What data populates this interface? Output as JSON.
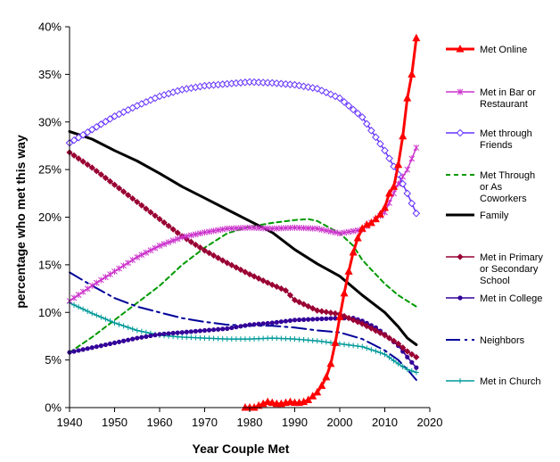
{
  "chart_data": {
    "type": "line",
    "xlabel": "Year Couple Met",
    "ylabel": "percentage who met this way",
    "xlim": [
      1940,
      2020
    ],
    "ylim": [
      0,
      40
    ],
    "xticks": [
      1940,
      1950,
      1960,
      1970,
      1980,
      1990,
      2000,
      2010,
      2020
    ],
    "yticks": [
      0,
      5,
      10,
      15,
      20,
      25,
      30,
      35,
      40
    ],
    "xtick_labels": [
      "1940",
      "1950",
      "1960",
      "1970",
      "1980",
      "1990",
      "2000",
      "2010",
      "2020"
    ],
    "ytick_labels": [
      "0%",
      "5%",
      "10%",
      "15%",
      "20%",
      "25%",
      "30%",
      "35%",
      "40%"
    ],
    "grid": false,
    "legend_position": "right",
    "series": [
      {
        "name": "Met Online",
        "color": "#ff0000",
        "dash": "solid",
        "marker": "triangle",
        "width": 3,
        "points": [
          [
            1979,
            0
          ],
          [
            1980,
            0
          ],
          [
            1981,
            0
          ],
          [
            1982,
            0.2
          ],
          [
            1983,
            0.4
          ],
          [
            1984,
            0.6
          ],
          [
            1985,
            0.5
          ],
          [
            1986,
            0.4
          ],
          [
            1987,
            0.4
          ],
          [
            1988,
            0.5
          ],
          [
            1989,
            0.6
          ],
          [
            1990,
            0.5
          ],
          [
            1991,
            0.5
          ],
          [
            1992,
            0.6
          ],
          [
            1993,
            0.8
          ],
          [
            1994,
            1.2
          ],
          [
            1995,
            1.6
          ],
          [
            1996,
            2.3
          ],
          [
            1997,
            3.2
          ],
          [
            1998,
            4.6
          ],
          [
            1999,
            6.8
          ],
          [
            2000,
            9.5
          ],
          [
            2001,
            12
          ],
          [
            2002,
            14.3
          ],
          [
            2003,
            16.3
          ],
          [
            2004,
            17.8
          ],
          [
            2005,
            18.8
          ],
          [
            2006,
            19.2
          ],
          [
            2007,
            19.4
          ],
          [
            2008,
            19.8
          ],
          [
            2009,
            20.3
          ],
          [
            2010,
            21
          ],
          [
            2011,
            22.5
          ],
          [
            2012,
            23.2
          ],
          [
            2013,
            25.5
          ],
          [
            2014,
            28.5
          ],
          [
            2015,
            32.5
          ],
          [
            2016,
            35
          ],
          [
            2017,
            38.8
          ]
        ]
      },
      {
        "name": "Met in Bar or Restaurant",
        "color": "#cc33cc",
        "dash": "solid",
        "marker": "star",
        "width": 1.5,
        "points": [
          [
            1940,
            11.2
          ],
          [
            1945,
            12.8
          ],
          [
            1950,
            14.3
          ],
          [
            1955,
            15.8
          ],
          [
            1960,
            17
          ],
          [
            1965,
            17.9
          ],
          [
            1970,
            18.4
          ],
          [
            1975,
            18.8
          ],
          [
            1980,
            18.9
          ],
          [
            1985,
            18.8
          ],
          [
            1990,
            18.9
          ],
          [
            1995,
            18.8
          ],
          [
            2000,
            18.3
          ],
          [
            2005,
            18.7
          ],
          [
            2010,
            20.5
          ],
          [
            2013,
            23.5
          ],
          [
            2015,
            25
          ],
          [
            2017,
            27.3
          ]
        ]
      },
      {
        "name": "Met through Friends",
        "color": "#6633ff",
        "dash": "solid",
        "marker": "diamond-open",
        "width": 1.5,
        "points": [
          [
            1940,
            27.8
          ],
          [
            1945,
            29.2
          ],
          [
            1950,
            30.6
          ],
          [
            1955,
            31.7
          ],
          [
            1960,
            32.7
          ],
          [
            1965,
            33.4
          ],
          [
            1970,
            33.8
          ],
          [
            1975,
            34
          ],
          [
            1980,
            34.2
          ],
          [
            1985,
            34.1
          ],
          [
            1990,
            33.9
          ],
          [
            1995,
            33.5
          ],
          [
            2000,
            32.5
          ],
          [
            2005,
            30.5
          ],
          [
            2010,
            27
          ],
          [
            2013,
            24.5
          ],
          [
            2015,
            22.5
          ],
          [
            2017,
            20.4
          ]
        ]
      },
      {
        "name": "Met Through or As Coworkers",
        "color": "#009900",
        "dash": "5,4",
        "marker": "none",
        "width": 2,
        "points": [
          [
            1940,
            5.8
          ],
          [
            1945,
            7.4
          ],
          [
            1950,
            9.2
          ],
          [
            1955,
            11
          ],
          [
            1960,
            12.8
          ],
          [
            1965,
            15
          ],
          [
            1970,
            16.8
          ],
          [
            1975,
            18.3
          ],
          [
            1980,
            19
          ],
          [
            1985,
            19.4
          ],
          [
            1990,
            19.7
          ],
          [
            1993,
            19.8
          ],
          [
            1995,
            19.6
          ],
          [
            2000,
            18.3
          ],
          [
            2003,
            17
          ],
          [
            2005,
            15.5
          ],
          [
            2008,
            14
          ],
          [
            2010,
            13
          ],
          [
            2013,
            11.8
          ],
          [
            2017,
            10.6
          ]
        ]
      },
      {
        "name": "Family",
        "color": "#000000",
        "dash": "solid",
        "marker": "none",
        "width": 3,
        "points": [
          [
            1940,
            29
          ],
          [
            1945,
            28.2
          ],
          [
            1950,
            27
          ],
          [
            1955,
            25.9
          ],
          [
            1960,
            24.6
          ],
          [
            1965,
            23.2
          ],
          [
            1970,
            22
          ],
          [
            1975,
            20.8
          ],
          [
            1980,
            19.6
          ],
          [
            1985,
            18.4
          ],
          [
            1990,
            16.6
          ],
          [
            1995,
            15.1
          ],
          [
            2000,
            13.8
          ],
          [
            2005,
            11.8
          ],
          [
            2010,
            10
          ],
          [
            2013,
            8.5
          ],
          [
            2015,
            7.3
          ],
          [
            2017,
            6.6
          ]
        ]
      },
      {
        "name": "Met in Primary or Secondary School",
        "color": "#990033",
        "dash": "solid",
        "marker": "diamond",
        "width": 1.5,
        "points": [
          [
            1940,
            26.8
          ],
          [
            1945,
            25.2
          ],
          [
            1950,
            23.4
          ],
          [
            1955,
            21.6
          ],
          [
            1960,
            19.8
          ],
          [
            1965,
            18
          ],
          [
            1970,
            16.5
          ],
          [
            1975,
            15.2
          ],
          [
            1980,
            14
          ],
          [
            1985,
            12.9
          ],
          [
            1988,
            12.3
          ],
          [
            1990,
            11.3
          ],
          [
            1995,
            10.2
          ],
          [
            2000,
            9.8
          ],
          [
            2005,
            8.8
          ],
          [
            2010,
            7.6
          ],
          [
            2013,
            6.7
          ],
          [
            2015,
            5.9
          ],
          [
            2017,
            5.3
          ]
        ]
      },
      {
        "name": "Met in College",
        "color": "#330099",
        "dash": "solid",
        "marker": "circle",
        "width": 1.5,
        "points": [
          [
            1940,
            5.8
          ],
          [
            1945,
            6.3
          ],
          [
            1950,
            6.8
          ],
          [
            1955,
            7.3
          ],
          [
            1960,
            7.7
          ],
          [
            1965,
            7.9
          ],
          [
            1970,
            8.1
          ],
          [
            1975,
            8.3
          ],
          [
            1980,
            8.7
          ],
          [
            1985,
            8.9
          ],
          [
            1990,
            9.2
          ],
          [
            1995,
            9.3
          ],
          [
            2000,
            9.4
          ],
          [
            2003,
            9.4
          ],
          [
            2005,
            9.1
          ],
          [
            2008,
            8.4
          ],
          [
            2010,
            7.7
          ],
          [
            2013,
            6.5
          ],
          [
            2015,
            5.3
          ],
          [
            2017,
            4.2
          ]
        ]
      },
      {
        "name": "Neighbors",
        "color": "#000099",
        "dash": "16,5,3,5",
        "marker": "none",
        "width": 2,
        "points": [
          [
            1940,
            14.2
          ],
          [
            1945,
            12.8
          ],
          [
            1950,
            11.5
          ],
          [
            1955,
            10.6
          ],
          [
            1960,
            10
          ],
          [
            1965,
            9.4
          ],
          [
            1970,
            9
          ],
          [
            1975,
            8.7
          ],
          [
            1980,
            8.6
          ],
          [
            1985,
            8.6
          ],
          [
            1990,
            8.4
          ],
          [
            1995,
            8.1
          ],
          [
            2000,
            7.9
          ],
          [
            2005,
            7.2
          ],
          [
            2010,
            6
          ],
          [
            2013,
            5
          ],
          [
            2015,
            4
          ],
          [
            2017,
            2.9
          ]
        ]
      },
      {
        "name": "Met in Church",
        "color": "#009999",
        "dash": "solid",
        "marker": "plus",
        "width": 1.5,
        "points": [
          [
            1940,
            11
          ],
          [
            1945,
            9.9
          ],
          [
            1950,
            8.9
          ],
          [
            1955,
            8.1
          ],
          [
            1960,
            7.6
          ],
          [
            1965,
            7.4
          ],
          [
            1970,
            7.3
          ],
          [
            1975,
            7.2
          ],
          [
            1980,
            7.2
          ],
          [
            1985,
            7.3
          ],
          [
            1990,
            7.2
          ],
          [
            1995,
            7
          ],
          [
            2000,
            6.7
          ],
          [
            2005,
            6.4
          ],
          [
            2010,
            5.6
          ],
          [
            2013,
            4.6
          ],
          [
            2015,
            4
          ],
          [
            2017,
            3.7
          ]
        ]
      }
    ],
    "legend": [
      {
        "label": [
          "Met Online"
        ],
        "series": 0
      },
      {
        "label": [
          "Met in Bar or",
          "Restaurant"
        ],
        "series": 1
      },
      {
        "label": [
          "Met through",
          "Friends"
        ],
        "series": 2
      },
      {
        "label": [
          "Met Through",
          "or As",
          "Coworkers"
        ],
        "series": 3
      },
      {
        "label": [
          "Family"
        ],
        "series": 4
      },
      {
        "label": [
          "Met in Primary",
          "or Secondary",
          "School"
        ],
        "series": 5
      },
      {
        "label": [
          "Met in College"
        ],
        "series": 6
      },
      {
        "label": [
          "Neighbors"
        ],
        "series": 7
      },
      {
        "label": [
          "Met in Church"
        ],
        "series": 8
      }
    ]
  }
}
